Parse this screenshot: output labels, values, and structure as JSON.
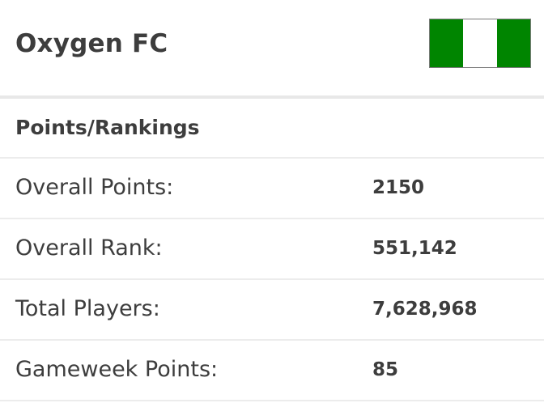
{
  "team": {
    "name": "Oxygen FC",
    "flag": {
      "icon": "nigeria-flag-icon",
      "colors": [
        "#008500",
        "#ffffff",
        "#008500"
      ]
    }
  },
  "section": {
    "title": "Points/Rankings"
  },
  "stats": [
    {
      "label": "Overall Points:",
      "value": "2150"
    },
    {
      "label": "Overall Rank:",
      "value": "551,142"
    },
    {
      "label": "Total Players:",
      "value": "7,628,968"
    },
    {
      "label": "Gameweek Points:",
      "value": "85"
    }
  ]
}
